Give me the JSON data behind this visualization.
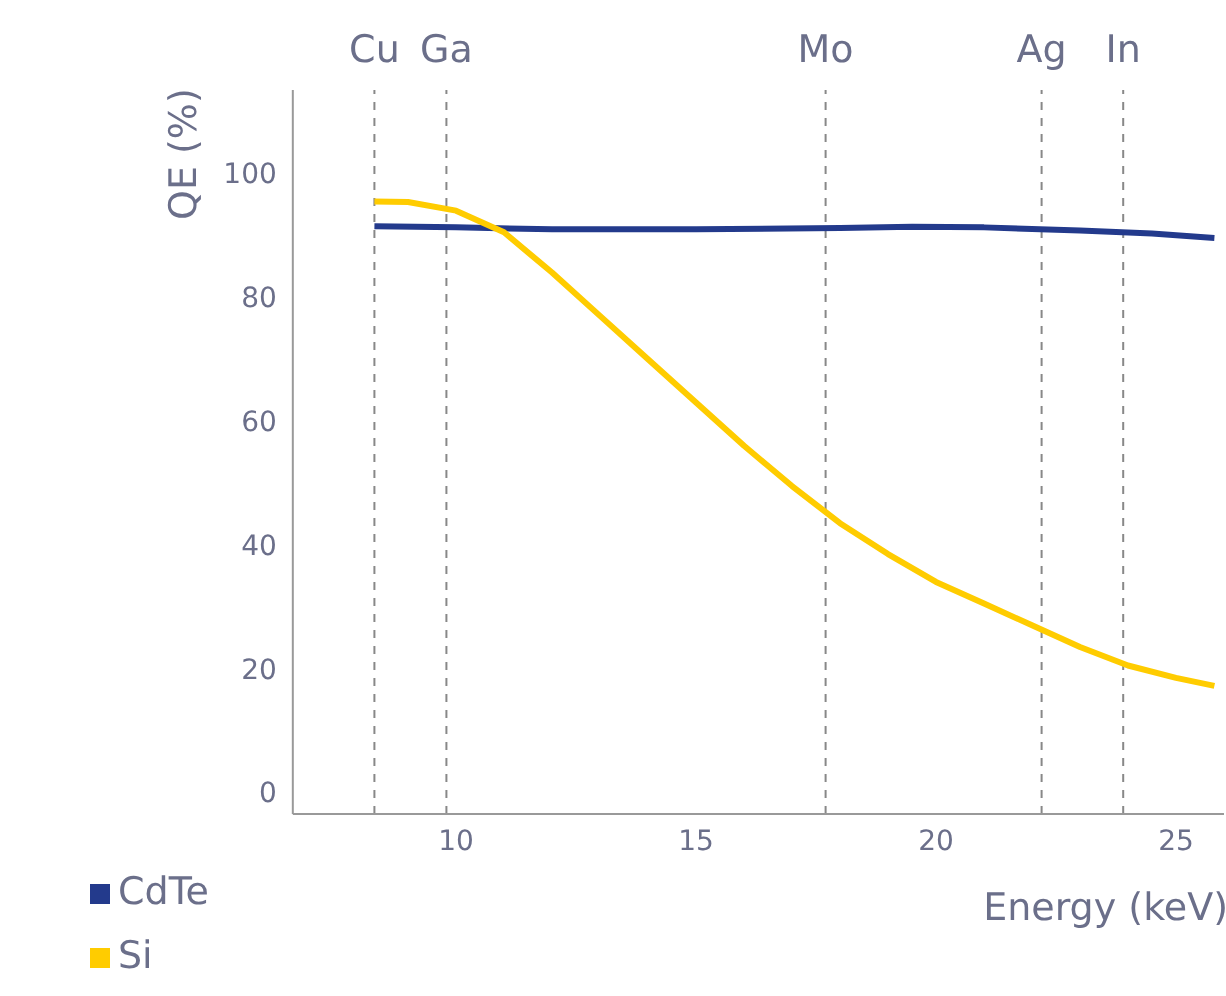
{
  "chart_data": {
    "type": "line",
    "xlabel": "Energy (keV)",
    "ylabel": "QE (%)",
    "xlim": [
      6.6,
      26
    ],
    "xticks": [
      10,
      15,
      20,
      25
    ],
    "ylim": [
      -3.5,
      113.5
    ],
    "yticks": [
      0,
      20,
      40,
      60,
      80,
      100
    ],
    "grid": false,
    "legend": "bottom left",
    "marker": "none",
    "line_style": "solid",
    "series": [
      {
        "name": "CdTe",
        "color": "#233a8c",
        "x": [
          8.3,
          10,
          12,
          15,
          18,
          19.5,
          21,
          23,
          24.5,
          25.8
        ],
        "values": [
          91.5,
          91.3,
          91,
          91,
          91.2,
          91.4,
          91.3,
          90.8,
          90.3,
          89.6
        ]
      },
      {
        "name": "Si",
        "color": "#ffcc00",
        "x": [
          8.3,
          9,
          10,
          11,
          12,
          13,
          14,
          15,
          16,
          17,
          18,
          19,
          20,
          21,
          22,
          23,
          24,
          25,
          25.8
        ],
        "values": [
          95.5,
          95.4,
          94,
          90.5,
          84,
          77,
          70,
          63,
          56,
          49.5,
          43.5,
          38.5,
          34,
          30.5,
          27,
          23.5,
          20.5,
          18.5,
          17.2
        ]
      }
    ],
    "ref_lines": [
      {
        "axis": "x",
        "value": 8.3,
        "label": "Cu",
        "color": "#888888",
        "line_style": "dashed"
      },
      {
        "axis": "x",
        "value": 9.8,
        "label": "Ga",
        "color": "#888888",
        "line_style": "dashed"
      },
      {
        "axis": "x",
        "value": 17.7,
        "label": "Mo",
        "color": "#888888",
        "line_style": "dashed"
      },
      {
        "axis": "x",
        "value": 22.2,
        "label": "Ag",
        "color": "#888888",
        "line_style": "dashed"
      },
      {
        "axis": "x",
        "value": 23.9,
        "label": "In",
        "color": "#888888",
        "line_style": "dashed"
      }
    ]
  }
}
